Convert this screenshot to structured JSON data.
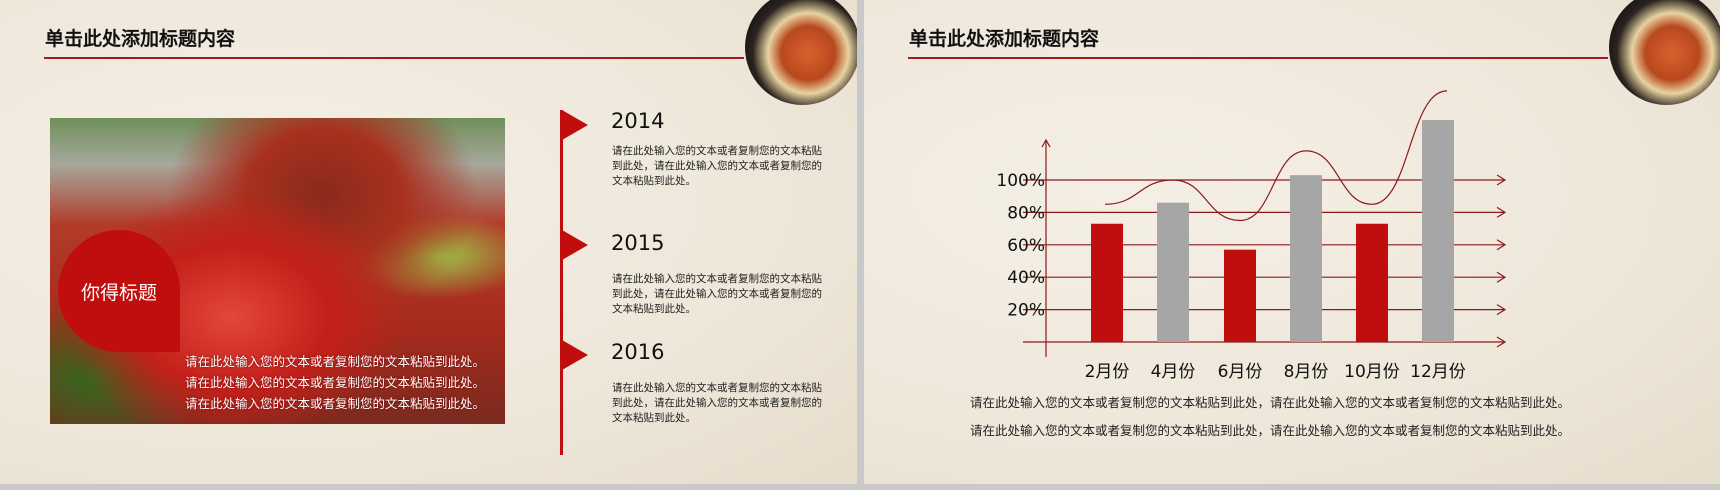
{
  "slide1": {
    "title": "单击此处添加标题内容",
    "bubble_title": "你得标题",
    "overlay_lines": [
      "请在此处输入您的文本或者复制您的文本粘贴到此处。",
      "请在此处输入您的文本或者复制您的文本粘贴到此处。",
      "请在此处输入您的文本或者复制您的文本粘贴到此处。"
    ],
    "timeline": [
      {
        "year": "2014",
        "text": "请在此处输入您的文本或者复制您的文本粘贴到此处，请在此处输入您的文本或者复制您的文本粘贴到此处。"
      },
      {
        "year": "2015",
        "text": "请在此处输入您的文本或者复制您的文本粘贴到此处，请在此处输入您的文本或者复制您的文本粘贴到此处。"
      },
      {
        "year": "2016",
        "text": "请在此处输入您的文本或者复制您的文本粘贴到此处，请在此处输入您的文本或者复制您的文本粘贴到此处。"
      }
    ]
  },
  "slide2": {
    "title": "单击此处添加标题内容",
    "bottom_lines": [
      "请在此处输入您的文本或者复制您的文本粘贴到此处，请在此处输入您的文本或者复制您的文本粘贴到此处。",
      "请在此处输入您的文本或者复制您的文本粘贴到此处，请在此处输入您的文本或者复制您的文本粘贴到此处。"
    ]
  },
  "colors": {
    "accent": "#c00e0e",
    "bar_gray": "#a6a6a6",
    "line": "#8b1a1a"
  },
  "chart_data": {
    "type": "bar",
    "categories": [
      "2月份",
      "4月份",
      "6月份",
      "8月份",
      "10月份",
      "12月份"
    ],
    "values": [
      73,
      86,
      57,
      103,
      73,
      137
    ],
    "bar_colors": [
      "#c00e0e",
      "#a6a6a6",
      "#c00e0e",
      "#a6a6a6",
      "#c00e0e",
      "#a6a6a6"
    ],
    "yticks": [
      "20%",
      "40%",
      "60%",
      "80%",
      "100%"
    ],
    "ytick_values": [
      20,
      40,
      60,
      80,
      100
    ],
    "trend_line": [
      85,
      100,
      75,
      118,
      85,
      155
    ],
    "grid": true
  }
}
